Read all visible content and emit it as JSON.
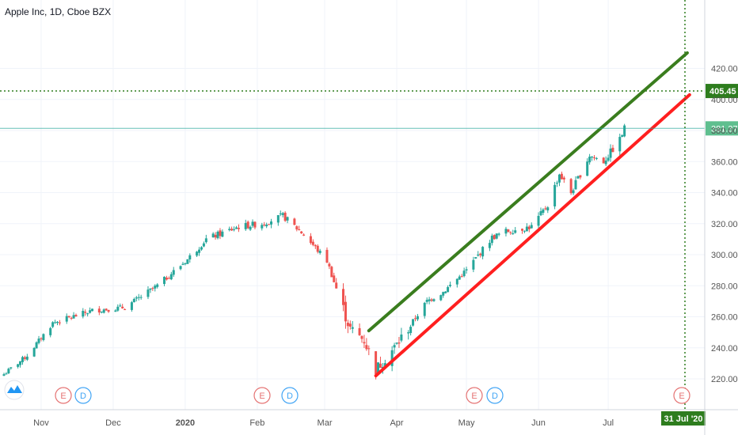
{
  "title": "Apple Inc, 1D, Cboe BZX",
  "colors": {
    "up": "#26a69a",
    "down": "#ef5350",
    "channel_upper": "#3a7d1e",
    "channel_lower": "#ff1f1f",
    "target_line": "#2e7d1e",
    "last_price_bg": "#5fbf8f",
    "grid": "#f0f3fa",
    "axis_text": "#555555"
  },
  "price_axis": {
    "ticks": [
      "420.00",
      "400.00",
      "380.00",
      "360.00",
      "340.00",
      "320.00",
      "300.00",
      "280.00",
      "260.00",
      "240.00",
      "220.00"
    ],
    "last_price": "381.37",
    "target_price": "405.45"
  },
  "time_axis": {
    "ticks": [
      "Nov",
      "Dec",
      "2020",
      "Feb",
      "Mar",
      "Apr",
      "May",
      "Jun",
      "Jul"
    ],
    "target_date": "31 Jul '20"
  },
  "events": [
    {
      "type": "E",
      "label": "E"
    },
    {
      "type": "D",
      "label": "D"
    },
    {
      "type": "E",
      "label": "E"
    },
    {
      "type": "D",
      "label": "D"
    },
    {
      "type": "E",
      "label": "E"
    },
    {
      "type": "D",
      "label": "D"
    },
    {
      "type": "E",
      "label": "E"
    }
  ],
  "logo": "tradingview-logo-icon",
  "chart_data": {
    "type": "candlestick",
    "title": "Apple Inc, 1D, Cboe BZX",
    "ylim": [
      212,
      432
    ],
    "x_ticks": [
      "Nov",
      "Dec",
      "2020",
      "Feb",
      "Mar",
      "Apr",
      "May",
      "Jun",
      "Jul"
    ],
    "y_ticks": [
      220,
      240,
      260,
      280,
      300,
      320,
      340,
      360,
      380,
      400,
      420
    ],
    "grid": true,
    "last_close": 381.37,
    "horizontal_level": 405.45,
    "vertical_marker": "31 Jul '20",
    "channel_upper": {
      "start": [
        "2020-03-20",
        251
      ],
      "end": [
        "2020-08-04",
        430
      ]
    },
    "channel_lower": {
      "start": [
        "2020-03-23",
        222
      ],
      "end": [
        "2020-08-05",
        403
      ]
    },
    "anchors": [
      [
        "2019-10-15",
        223
      ],
      [
        "2019-10-25",
        235
      ],
      [
        "2019-11-05",
        256
      ],
      [
        "2019-11-22",
        264
      ],
      [
        "2019-12-06",
        266
      ],
      [
        "2019-12-20",
        280
      ],
      [
        "2020-01-02",
        297
      ],
      [
        "2020-01-10",
        310
      ],
      [
        "2020-01-24",
        318
      ],
      [
        "2020-02-03",
        320
      ],
      [
        "2020-02-12",
        325
      ],
      [
        "2020-02-21",
        313
      ],
      [
        "2020-03-02",
        296
      ],
      [
        "2020-03-09",
        265
      ],
      [
        "2020-03-12",
        252
      ],
      [
        "2020-03-18",
        245
      ],
      [
        "2020-03-23",
        226
      ],
      [
        "2020-04-01",
        242
      ],
      [
        "2020-04-14",
        270
      ],
      [
        "2020-04-21",
        276
      ],
      [
        "2020-05-01",
        290
      ],
      [
        "2020-05-12",
        311
      ],
      [
        "2020-05-18",
        315
      ],
      [
        "2020-05-29",
        318
      ],
      [
        "2020-06-05",
        332
      ],
      [
        "2020-06-10",
        352
      ],
      [
        "2020-06-15",
        340
      ],
      [
        "2020-06-23",
        364
      ],
      [
        "2020-06-29",
        360
      ],
      [
        "2020-07-06",
        374
      ],
      [
        "2020-07-08",
        381.37
      ]
    ]
  }
}
